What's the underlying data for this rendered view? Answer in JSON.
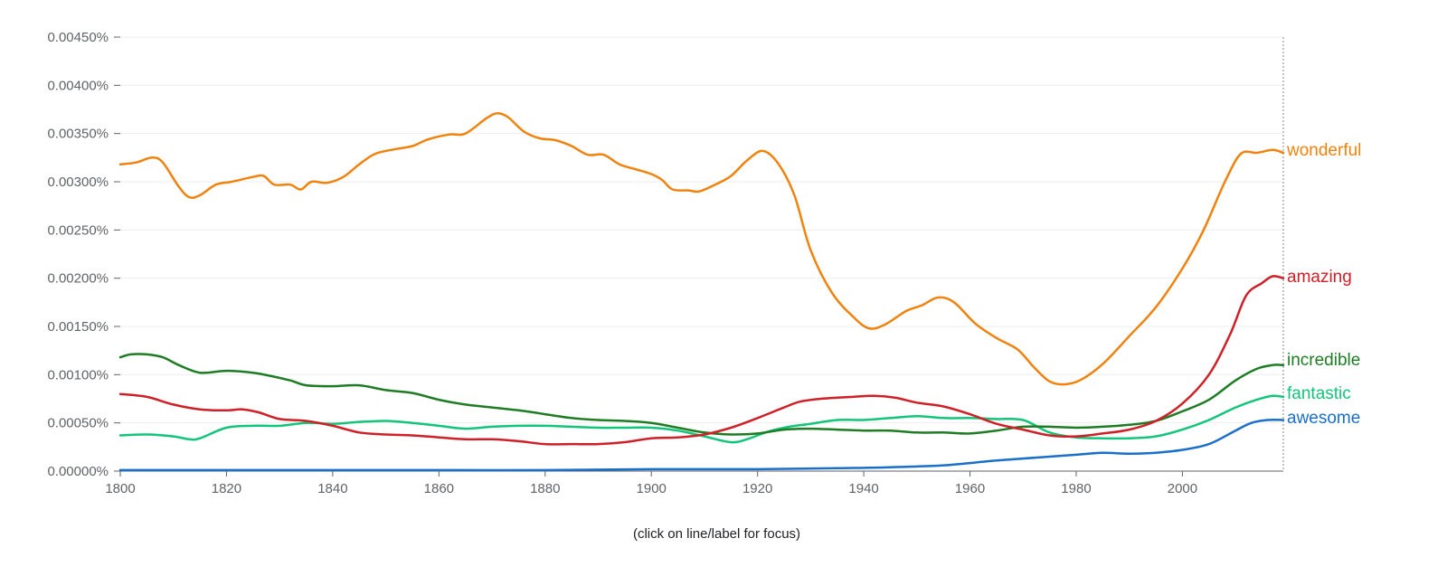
{
  "hint": "(click on line/label for focus)",
  "chart_data": {
    "type": "line",
    "title": "",
    "xlabel": "",
    "ylabel": "",
    "xlim": [
      1800,
      2019
    ],
    "ylim": [
      0,
      0.0045
    ],
    "x_ticks": [
      1800,
      1820,
      1840,
      1860,
      1880,
      1900,
      1920,
      1940,
      1960,
      1980,
      2000
    ],
    "y_ticks": [
      {
        "value": 0.0,
        "label": "0.00000%"
      },
      {
        "value": 0.0005,
        "label": "0.00050%"
      },
      {
        "value": 0.001,
        "label": "0.00100%"
      },
      {
        "value": 0.0015,
        "label": "0.00150%"
      },
      {
        "value": 0.002,
        "label": "0.00200%"
      },
      {
        "value": 0.0025,
        "label": "0.00250%"
      },
      {
        "value": 0.003,
        "label": "0.00300%"
      },
      {
        "value": 0.0035,
        "label": "0.00350%"
      },
      {
        "value": 0.004,
        "label": "0.00400%"
      },
      {
        "value": 0.0045,
        "label": "0.00450%"
      }
    ],
    "grid": true,
    "legend": "right-end labels",
    "series": [
      {
        "name": "wonderful",
        "color": "#f0820e",
        "points": [
          [
            1800,
            0.00318
          ],
          [
            1803,
            0.0032
          ],
          [
            1806,
            0.00325
          ],
          [
            1808,
            0.0032
          ],
          [
            1811,
            0.00295
          ],
          [
            1813,
            0.00284
          ],
          [
            1815,
            0.00286
          ],
          [
            1818,
            0.00297
          ],
          [
            1821,
            0.003
          ],
          [
            1825,
            0.00305
          ],
          [
            1827,
            0.00306
          ],
          [
            1829,
            0.00297
          ],
          [
            1832,
            0.00297
          ],
          [
            1834,
            0.00292
          ],
          [
            1836,
            0.003
          ],
          [
            1839,
            0.00299
          ],
          [
            1842,
            0.00305
          ],
          [
            1845,
            0.00318
          ],
          [
            1848,
            0.00329
          ],
          [
            1852,
            0.00334
          ],
          [
            1855,
            0.00337
          ],
          [
            1858,
            0.00344
          ],
          [
            1862,
            0.00349
          ],
          [
            1865,
            0.0035
          ],
          [
            1869,
            0.00366
          ],
          [
            1871,
            0.00371
          ],
          [
            1873,
            0.00367
          ],
          [
            1876,
            0.00352
          ],
          [
            1879,
            0.00345
          ],
          [
            1882,
            0.00343
          ],
          [
            1885,
            0.00337
          ],
          [
            1888,
            0.00328
          ],
          [
            1891,
            0.00328
          ],
          [
            1894,
            0.00318
          ],
          [
            1897,
            0.00313
          ],
          [
            1900,
            0.00308
          ],
          [
            1902,
            0.00302
          ],
          [
            1904,
            0.00292
          ],
          [
            1907,
            0.00291
          ],
          [
            1909,
            0.0029
          ],
          [
            1912,
            0.00297
          ],
          [
            1915,
            0.00306
          ],
          [
            1918,
            0.00322
          ],
          [
            1921,
            0.00332
          ],
          [
            1924,
            0.00318
          ],
          [
            1927,
            0.00285
          ],
          [
            1930,
            0.00229
          ],
          [
            1934,
            0.00185
          ],
          [
            1938,
            0.0016
          ],
          [
            1941,
            0.00148
          ],
          [
            1944,
            0.00152
          ],
          [
            1948,
            0.00166
          ],
          [
            1951,
            0.00172
          ],
          [
            1954,
            0.0018
          ],
          [
            1957,
            0.00175
          ],
          [
            1961,
            0.00153
          ],
          [
            1965,
            0.00138
          ],
          [
            1969,
            0.00126
          ],
          [
            1972,
            0.00108
          ],
          [
            1975,
            0.00093
          ],
          [
            1978,
            0.0009
          ],
          [
            1981,
            0.00095
          ],
          [
            1985,
            0.00111
          ],
          [
            1990,
            0.0014
          ],
          [
            1995,
            0.0017
          ],
          [
            2000,
            0.0021
          ],
          [
            2004,
            0.0025
          ],
          [
            2008,
            0.003
          ],
          [
            2011,
            0.00329
          ],
          [
            2014,
            0.0033
          ],
          [
            2017,
            0.00333
          ],
          [
            2019,
            0.0033
          ]
        ]
      },
      {
        "name": "amazing",
        "color": "#d02027",
        "points": [
          [
            1800,
            0.0008
          ],
          [
            1805,
            0.00077
          ],
          [
            1810,
            0.00069
          ],
          [
            1815,
            0.00064
          ],
          [
            1820,
            0.00063
          ],
          [
            1823,
            0.00064
          ],
          [
            1826,
            0.00061
          ],
          [
            1830,
            0.00054
          ],
          [
            1835,
            0.00052
          ],
          [
            1840,
            0.00047
          ],
          [
            1845,
            0.0004
          ],
          [
            1850,
            0.00038
          ],
          [
            1855,
            0.00037
          ],
          [
            1860,
            0.00035
          ],
          [
            1865,
            0.00033
          ],
          [
            1870,
            0.00033
          ],
          [
            1875,
            0.00031
          ],
          [
            1880,
            0.00028
          ],
          [
            1885,
            0.00028
          ],
          [
            1890,
            0.00028
          ],
          [
            1895,
            0.0003
          ],
          [
            1900,
            0.00034
          ],
          [
            1905,
            0.00035
          ],
          [
            1910,
            0.00038
          ],
          [
            1915,
            0.00045
          ],
          [
            1920,
            0.00055
          ],
          [
            1925,
            0.00066
          ],
          [
            1928,
            0.00072
          ],
          [
            1932,
            0.00075
          ],
          [
            1938,
            0.00077
          ],
          [
            1942,
            0.00078
          ],
          [
            1946,
            0.00076
          ],
          [
            1950,
            0.00071
          ],
          [
            1955,
            0.00067
          ],
          [
            1960,
            0.00059
          ],
          [
            1965,
            0.00049
          ],
          [
            1970,
            0.00043
          ],
          [
            1975,
            0.00037
          ],
          [
            1980,
            0.00036
          ],
          [
            1985,
            0.00039
          ],
          [
            1990,
            0.00043
          ],
          [
            1995,
            0.00052
          ],
          [
            2000,
            0.0007
          ],
          [
            2005,
            0.001
          ],
          [
            2009,
            0.00142
          ],
          [
            2012,
            0.00182
          ],
          [
            2015,
            0.00195
          ],
          [
            2017,
            0.00202
          ],
          [
            2019,
            0.002
          ]
        ]
      },
      {
        "name": "incredible",
        "color": "#1e7d24",
        "points": [
          [
            1800,
            0.00118
          ],
          [
            1802,
            0.00121
          ],
          [
            1805,
            0.00121
          ],
          [
            1808,
            0.00118
          ],
          [
            1811,
            0.0011
          ],
          [
            1815,
            0.00102
          ],
          [
            1820,
            0.00104
          ],
          [
            1825,
            0.00102
          ],
          [
            1828,
            0.00099
          ],
          [
            1832,
            0.00094
          ],
          [
            1835,
            0.00089
          ],
          [
            1840,
            0.00088
          ],
          [
            1845,
            0.00089
          ],
          [
            1850,
            0.00084
          ],
          [
            1855,
            0.00081
          ],
          [
            1860,
            0.00074
          ],
          [
            1865,
            0.00069
          ],
          [
            1870,
            0.00066
          ],
          [
            1875,
            0.00063
          ],
          [
            1880,
            0.00059
          ],
          [
            1885,
            0.00055
          ],
          [
            1890,
            0.00053
          ],
          [
            1895,
            0.00052
          ],
          [
            1900,
            0.0005
          ],
          [
            1905,
            0.00045
          ],
          [
            1910,
            0.0004
          ],
          [
            1915,
            0.00038
          ],
          [
            1920,
            0.00039
          ],
          [
            1925,
            0.00043
          ],
          [
            1930,
            0.00044
          ],
          [
            1935,
            0.00043
          ],
          [
            1940,
            0.00042
          ],
          [
            1945,
            0.00042
          ],
          [
            1950,
            0.0004
          ],
          [
            1955,
            0.0004
          ],
          [
            1960,
            0.00039
          ],
          [
            1965,
            0.00042
          ],
          [
            1970,
            0.00046
          ],
          [
            1975,
            0.00046
          ],
          [
            1980,
            0.00045
          ],
          [
            1985,
            0.00046
          ],
          [
            1990,
            0.00048
          ],
          [
            1995,
            0.00052
          ],
          [
            2000,
            0.00062
          ],
          [
            2005,
            0.00074
          ],
          [
            2010,
            0.00094
          ],
          [
            2014,
            0.00106
          ],
          [
            2017,
            0.0011
          ],
          [
            2019,
            0.0011
          ]
        ]
      },
      {
        "name": "fantastic",
        "color": "#13c57a",
        "points": [
          [
            1800,
            0.00037
          ],
          [
            1805,
            0.00038
          ],
          [
            1810,
            0.00036
          ],
          [
            1813,
            0.00033
          ],
          [
            1815,
            0.00034
          ],
          [
            1820,
            0.00045
          ],
          [
            1825,
            0.00047
          ],
          [
            1830,
            0.00047
          ],
          [
            1835,
            0.0005
          ],
          [
            1840,
            0.00049
          ],
          [
            1845,
            0.00051
          ],
          [
            1850,
            0.00052
          ],
          [
            1855,
            0.0005
          ],
          [
            1860,
            0.00047
          ],
          [
            1865,
            0.00044
          ],
          [
            1870,
            0.00046
          ],
          [
            1875,
            0.00047
          ],
          [
            1880,
            0.00047
          ],
          [
            1885,
            0.00046
          ],
          [
            1890,
            0.00045
          ],
          [
            1895,
            0.00045
          ],
          [
            1900,
            0.00045
          ],
          [
            1905,
            0.00042
          ],
          [
            1910,
            0.00036
          ],
          [
            1915,
            0.0003
          ],
          [
            1918,
            0.00033
          ],
          [
            1922,
            0.00041
          ],
          [
            1926,
            0.00046
          ],
          [
            1930,
            0.00049
          ],
          [
            1935,
            0.00053
          ],
          [
            1940,
            0.00053
          ],
          [
            1945,
            0.00055
          ],
          [
            1950,
            0.00057
          ],
          [
            1955,
            0.00055
          ],
          [
            1960,
            0.00055
          ],
          [
            1965,
            0.00054
          ],
          [
            1970,
            0.00053
          ],
          [
            1975,
            0.0004
          ],
          [
            1980,
            0.00035
          ],
          [
            1985,
            0.00034
          ],
          [
            1990,
            0.00034
          ],
          [
            1995,
            0.00036
          ],
          [
            2000,
            0.00043
          ],
          [
            2005,
            0.00053
          ],
          [
            2010,
            0.00066
          ],
          [
            2014,
            0.00074
          ],
          [
            2017,
            0.00078
          ],
          [
            2019,
            0.00077
          ]
        ]
      },
      {
        "name": "awesome",
        "color": "#1a6fc9",
        "points": [
          [
            1800,
            1e-05
          ],
          [
            1820,
            1e-05
          ],
          [
            1840,
            1e-05
          ],
          [
            1860,
            1e-05
          ],
          [
            1880,
            1e-05
          ],
          [
            1900,
            2e-05
          ],
          [
            1920,
            2e-05
          ],
          [
            1935,
            3e-05
          ],
          [
            1945,
            4e-05
          ],
          [
            1955,
            6e-05
          ],
          [
            1965,
            0.00011
          ],
          [
            1975,
            0.00015
          ],
          [
            1980,
            0.00017
          ],
          [
            1985,
            0.00019
          ],
          [
            1990,
            0.00018
          ],
          [
            1995,
            0.00019
          ],
          [
            2000,
            0.00022
          ],
          [
            2005,
            0.00028
          ],
          [
            2010,
            0.00042
          ],
          [
            2013,
            0.0005
          ],
          [
            2016,
            0.00053
          ],
          [
            2019,
            0.00053
          ]
        ]
      }
    ]
  }
}
